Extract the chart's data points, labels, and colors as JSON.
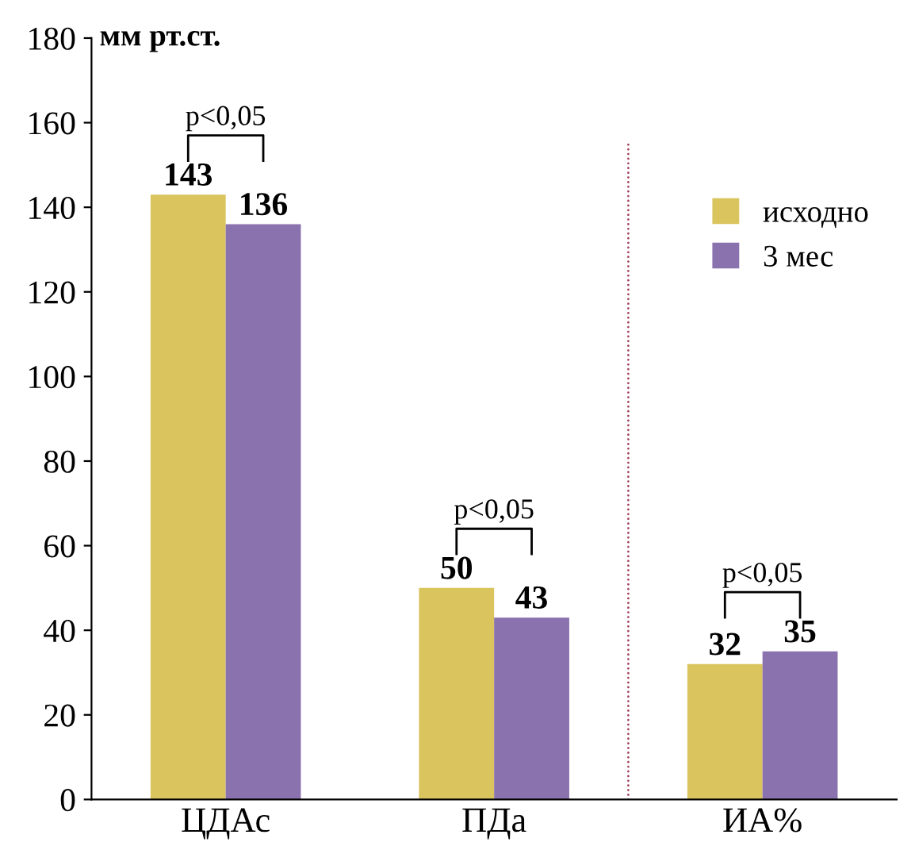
{
  "chart_data": {
    "type": "bar",
    "ylabel": "мм рт.ст.",
    "categories": [
      "ЦДАс",
      "ПДа",
      "ИА%"
    ],
    "series": [
      {
        "name": "исходно",
        "color": "#d9c45e",
        "values": [
          143,
          50,
          32
        ]
      },
      {
        "name": "3 мес",
        "color": "#8a72ae",
        "values": [
          136,
          43,
          35
        ]
      }
    ],
    "ylim": [
      0,
      180
    ],
    "yticks": [
      0,
      20,
      40,
      60,
      80,
      100,
      120,
      140,
      160,
      180
    ],
    "data_labels": true,
    "legend": "right",
    "grid": false,
    "annotations": [
      "p<0,05",
      "p<0,05",
      "p<0,05"
    ]
  }
}
